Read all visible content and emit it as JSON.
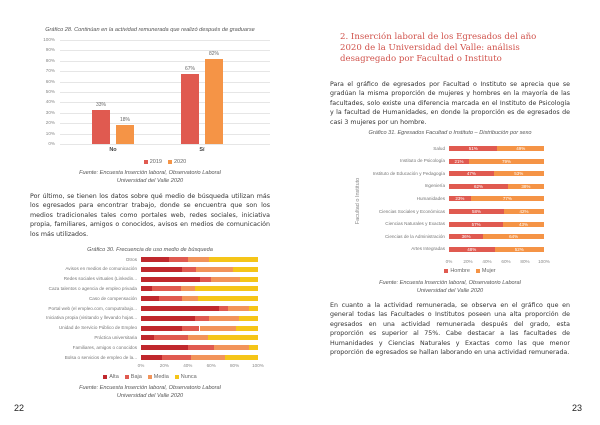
{
  "left_page": {
    "page_number": "22",
    "paragraph": "Por último, se tienen los datos sobre qué medio de búsqueda utilizan más los egresados para encontrar trabajo, donde se encuentra que son los medios tradicionales tales como portales web, redes sociales, iniciativa propia, familiares, amigos o conocidos, avisos en medios de comunicación los más utilizados."
  },
  "right_page": {
    "page_number": "23",
    "heading": "2. Inserción laboral de los Egresados del año 2020 de la Universidad del Valle: análisis desagregado por Facultad o Instituto",
    "paragraph1": "Para el gráfico de egresados por Facultad o Instituto se aprecia que se gradúan la misma proporción de mujeres y hombres en la mayoría de las facultades, solo existe una diferencia marcada en el Instituto de Psicología y la facultad de Humanidades, en donde la proporción es de egresados de casi 3 mujeres por un hombre.",
    "paragraph2": "En cuanto a la actividad remunerada, se observa en el gráfico que en general todas las Facultades o Institutos poseen una alta proporción de egresados en una actividad remunerada después del grado, esta proporción es superior al 75%. Cabe destacar a las facultades de Humanidades y Ciencias Naturales y Exactas como las que menor proporción de egresados se hallan laborando en una actividad remunerada."
  },
  "chart_data": [
    {
      "type": "bar",
      "title": "Gráfico 28. Continúan en la actividad remunerada que realizó después de graduarse",
      "categories": [
        "No",
        "Sí"
      ],
      "series": [
        {
          "name": "2019",
          "values": [
            33,
            67
          ],
          "color": "#e05a50"
        },
        {
          "name": "2020",
          "values": [
            18,
            82
          ],
          "color": "#f59446"
        }
      ],
      "value_labels": [
        [
          "33%",
          "67%"
        ],
        [
          "18%",
          "82%"
        ]
      ],
      "yticks": [
        "0%",
        "10%",
        "20%",
        "30%",
        "40%",
        "50%",
        "60%",
        "70%",
        "80%",
        "90%",
        "100%"
      ],
      "ylim": [
        0,
        100
      ],
      "legend": "bottom",
      "source": [
        "Fuente: Encuesta Inserción laboral, Observatorio Laboral",
        "Universidad del Valle 2020"
      ]
    },
    {
      "type": "bar",
      "orientation": "horizontal-stacked",
      "title": "Gráfico 30. Frecuencia de uso medio de búsqueda",
      "categories": [
        "Otros",
        "Avisos en medios de comunicación",
        "Redes sociales virtuales (Linkedin...",
        "Caza talentos o agencia de empleo privada",
        "Caso de compensación",
        "Portal web (el empleo.com, computrabajo...",
        "Iniciativa propia (visitando y llevando hojas...",
        "Unidad de Servicio Público de Empleo",
        "Práctica universitaria",
        "Familiares, amigos o conocidos",
        "Bolsa o servicios de empleo de la..."
      ],
      "series": [
        {
          "name": "Alta",
          "color": "#c0282d",
          "values": [
            24,
            35,
            50,
            9,
            15,
            67,
            46,
            35,
            11,
            40,
            18
          ]
        },
        {
          "name": "Baja",
          "color": "#e05a50",
          "values": [
            16,
            12,
            10,
            25,
            20,
            7,
            12,
            15,
            29,
            22,
            25
          ]
        },
        {
          "name": "Media",
          "color": "#f2945a",
          "values": [
            18,
            32,
            25,
            12,
            14,
            18,
            26,
            31,
            17,
            30,
            29
          ]
        },
        {
          "name": "Nunca",
          "color": "#f5c518",
          "values": [
            42,
            21,
            15,
            54,
            51,
            8,
            16,
            19,
            43,
            8,
            28
          ]
        }
      ],
      "xticks": [
        "0%",
        "20%",
        "40%",
        "60%",
        "80%",
        "100%"
      ],
      "xlim": [
        0,
        100
      ],
      "legend": "bottom",
      "source": [
        "Fuente: Encuesta Inserción laboral, Observatorio Laboral",
        "Universidad del Valle 2020"
      ]
    },
    {
      "type": "bar",
      "orientation": "horizontal-stacked",
      "title": "Gráfico 31. Egresados Facultad o Instituto – Distribución por sexo",
      "ylabel": "Facultad o Instituto",
      "categories": [
        "Salud",
        "Instituto de Psicología",
        "Instituto de Educación y Pedagogía",
        "Ingeniería",
        "Humanidades",
        "Ciencias Sociales y Económicas",
        "Ciencias Naturales y Exactas",
        "Ciencias de la Administración",
        "Artes Integradas"
      ],
      "series": [
        {
          "name": "Hombre",
          "color": "#e05a50",
          "values": [
            51,
            21,
            47,
            62,
            23,
            58,
            57,
            36,
            48
          ]
        },
        {
          "name": "Mujer",
          "color": "#f59446",
          "values": [
            49,
            79,
            53,
            38,
            77,
            42,
            43,
            64,
            52
          ]
        }
      ],
      "xticks": [
        "0%",
        "20%",
        "40%",
        "60%",
        "80%",
        "100%"
      ],
      "xlim": [
        0,
        100
      ],
      "legend": "bottom",
      "source": [
        "Fuente: Encuesta Inserción laboral, Observatorio Laboral",
        "Universidad del Valle 2020"
      ]
    }
  ]
}
